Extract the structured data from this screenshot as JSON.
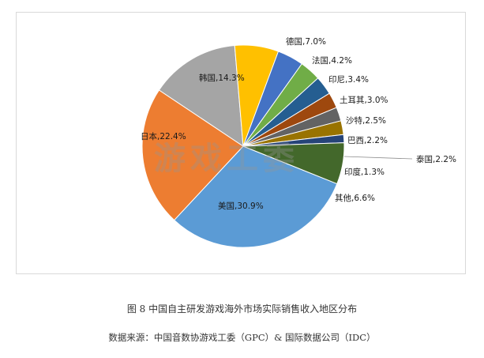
{
  "chart_data": {
    "type": "pie",
    "slices": [
      {
        "label": "美国",
        "value": 30.9,
        "display": "美国,30.9%",
        "color": "#5b9bd5"
      },
      {
        "label": "日本",
        "value": 22.4,
        "display": "日本,22.4%",
        "color": "#ed7d31"
      },
      {
        "label": "韩国",
        "value": 14.3,
        "display": "韩国,14.3%",
        "color": "#a5a5a5"
      },
      {
        "label": "德国",
        "value": 7.0,
        "display": "德国,7.0%",
        "color": "#ffc000"
      },
      {
        "label": "法国",
        "value": 4.2,
        "display": "法国,4.2%",
        "color": "#4472c4"
      },
      {
        "label": "印尼",
        "value": 3.4,
        "display": "印尼,3.4%",
        "color": "#70ad47"
      },
      {
        "label": "土耳其",
        "value": 3.0,
        "display": "土耳其,3.0%",
        "color": "#255e91"
      },
      {
        "label": "沙特",
        "value": 2.5,
        "display": "沙特,2.5%",
        "color": "#9e480e"
      },
      {
        "label": "巴西",
        "value": 2.2,
        "display": "巴西,2.2%",
        "color": "#636363"
      },
      {
        "label": "泰国",
        "value": 2.2,
        "display": "泰国,2.2%",
        "color": "#997300"
      },
      {
        "label": "印度",
        "value": 1.3,
        "display": "印度,1.3%",
        "color": "#264478"
      },
      {
        "label": "其他",
        "value": 6.6,
        "display": "其他,6.6%",
        "color": "#43682b"
      }
    ]
  },
  "figure_caption": "图 8  中国自主研发游戏海外市场实际销售收入地区分布",
  "source_caption": "数据来源：中国音数协游戏工委（GPC）& 国际数据公司（IDC）",
  "watermark": "游戏工委"
}
